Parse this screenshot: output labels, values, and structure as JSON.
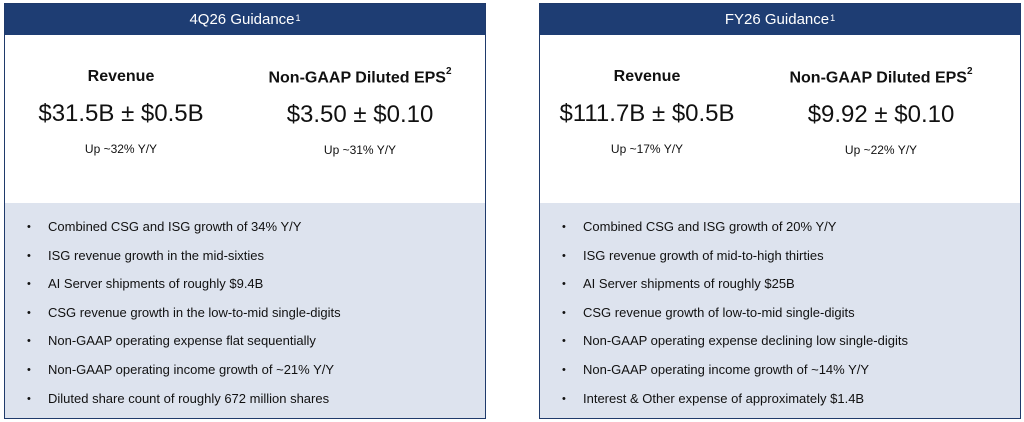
{
  "left": {
    "header": {
      "title": "4Q26 Guidance",
      "sup": "1"
    },
    "revenue": {
      "label": "Revenue",
      "value": "$31.5B ± $0.5B",
      "growth": "Up ~32% Y/Y"
    },
    "eps": {
      "label": "Non-GAAP Diluted EPS",
      "sup": "2",
      "value": "$3.50 ± $0.10",
      "growth": "Up ~31% Y/Y"
    },
    "bullets": [
      "Combined CSG and ISG growth of 34% Y/Y",
      "ISG revenue growth in the mid-sixties",
      "AI Server shipments of roughly $9.4B",
      "CSG revenue growth in the low-to-mid single-digits",
      "Non-GAAP operating expense flat sequentially",
      "Non-GAAP operating income growth of ~21% Y/Y",
      "Diluted share count of roughly 672 million shares"
    ]
  },
  "right": {
    "header": {
      "title": "FY26 Guidance",
      "sup": "1"
    },
    "revenue": {
      "label": "Revenue",
      "value": "$111.7B ± $0.5B",
      "growth": "Up ~17% Y/Y"
    },
    "eps": {
      "label": "Non-GAAP Diluted EPS",
      "sup": "2",
      "value": "$9.92 ± $0.10",
      "growth": "Up ~22% Y/Y"
    },
    "bullets": [
      "Combined CSG and ISG growth of 20% Y/Y",
      "ISG revenue growth of mid-to-high thirties",
      "AI Server shipments of roughly $25B",
      "CSG revenue growth of low-to-mid single-digits",
      "Non-GAAP operating expense declining low single-digits",
      "Non-GAAP operating income growth of ~14% Y/Y",
      "Interest & Other expense of approximately $1.4B"
    ]
  },
  "bullet_glyph": "•",
  "colors": {
    "header_bg": "#1e3d73",
    "bullet_bg": "#dde3ee"
  }
}
